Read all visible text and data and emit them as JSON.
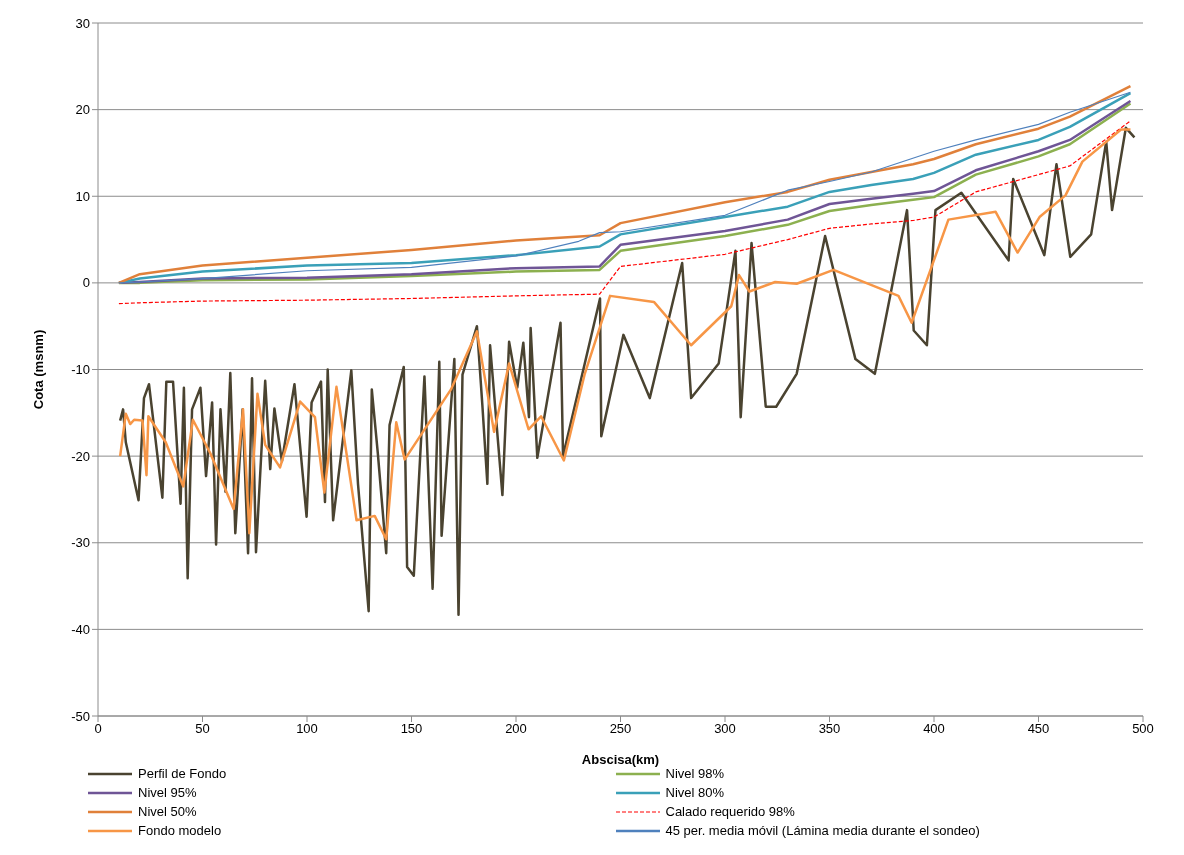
{
  "chart_data": {
    "type": "line",
    "xlabel": "Abscisa(km)",
    "ylabel": "Cota (msnm)",
    "xlim": [
      0,
      500
    ],
    "xticks": [
      0,
      50,
      100,
      150,
      200,
      250,
      300,
      350,
      400,
      450,
      500
    ],
    "ylim": [
      -50,
      30
    ],
    "yticks": [
      -50,
      -40,
      -30,
      -20,
      -10,
      0,
      10,
      20,
      30
    ],
    "grid": "y",
    "legend": "bottom",
    "marker": "none",
    "line_style": "solid",
    "series": [
      {
        "name": "Perfil de Fondo",
        "color": "#4a4330",
        "x": [
          10.6,
          12,
          13.3,
          19.4,
          22,
          24.4,
          30.8,
          32.7,
          35.9,
          39.5,
          41.1,
          42.9,
          45,
          49,
          51.7,
          54.6,
          56.5,
          58.6,
          61,
          63.3,
          65.7,
          69.2,
          71.8,
          73.7,
          75.6,
          80,
          82.4,
          84.4,
          88,
          94,
          99.8,
          102.2,
          106.7,
          108.6,
          109.9,
          112.5,
          121.2,
          124.4,
          129.5,
          131,
          133.9,
          137.9,
          139.5,
          146.3,
          147.9,
          151.1,
          156.2,
          160.1,
          163.3,
          164.4,
          170.5,
          172.5,
          174.4,
          181.3,
          183.9,
          186.3,
          187.6,
          193.5,
          196.7,
          200.6,
          203.5,
          206.2,
          207,
          210.2,
          221.3,
          222.5,
          240.2,
          240.8,
          251.4,
          264,
          279.5,
          283.8,
          297,
          305,
          307.5,
          312.7,
          319.5,
          324.5,
          334.3,
          347.9,
          362.4,
          371.7,
          387.1,
          390.3,
          396.6,
          400.7,
          413.1,
          435.7,
          437.9,
          452.8,
          458.6,
          465.2,
          475.2,
          482.4,
          485.2,
          491.8,
          495.9
        ],
        "values": [
          -15.9,
          -14.6,
          -18.4,
          -25.1,
          -13.3,
          -11.7,
          -24.8,
          -11.4,
          -11.4,
          -25.5,
          -12.1,
          -34.1,
          -14.6,
          -12.1,
          -22.3,
          -13.8,
          -30.2,
          -14.6,
          -24.1,
          -10.4,
          -28.9,
          -14.6,
          -31.2,
          -11,
          -31.1,
          -11.3,
          -21.5,
          -14.5,
          -20.6,
          -11.7,
          -27,
          -13.8,
          -11.4,
          -25.3,
          -10,
          -27.4,
          -10.1,
          -23.2,
          -37.9,
          -12.3,
          -19.7,
          -31.2,
          -16.4,
          -9.7,
          -32.8,
          -33.8,
          -10.8,
          -35.3,
          -9.1,
          -29.2,
          -8.8,
          -38.3,
          -10.6,
          -5,
          -14.1,
          -23.2,
          -7.2,
          -24.5,
          -6.8,
          -12.1,
          -6.9,
          -15.5,
          -5.2,
          -20.2,
          -4.6,
          -20,
          -1.8,
          -17.7,
          -6,
          -13.3,
          2.3,
          -13.3,
          -9.3,
          3.7,
          -15.5,
          4.6,
          -14.3,
          -14.3,
          -10.5,
          5.4,
          -8.8,
          -10.5,
          8.4,
          -5.5,
          -7.2,
          8.4,
          10.4,
          2.6,
          12,
          3.2,
          13.7,
          3,
          5.6,
          16.3,
          8.4,
          17.9,
          16.8
        ]
      },
      {
        "name": "Nivel 98%",
        "color": "#8cb04f",
        "x": [
          10,
          20,
          50,
          100,
          150,
          200,
          240,
          250,
          300,
          330,
          350,
          370,
          390,
          400,
          420,
          450,
          465,
          494
        ],
        "values": [
          0,
          0,
          0.3,
          0.4,
          0.8,
          1.3,
          1.5,
          3.7,
          5.4,
          6.7,
          8.3,
          9,
          9.6,
          9.9,
          12.5,
          14.6,
          16,
          20.7
        ]
      },
      {
        "name": "Nivel 95%",
        "color": "#6f5596",
        "x": [
          10,
          20,
          50,
          100,
          150,
          200,
          240,
          250,
          300,
          330,
          350,
          370,
          390,
          400,
          420,
          450,
          465,
          494
        ],
        "values": [
          0,
          0.1,
          0.5,
          0.6,
          1,
          1.7,
          1.9,
          4.4,
          6,
          7.3,
          9.1,
          9.7,
          10.3,
          10.6,
          13,
          15.2,
          16.5,
          21
        ]
      },
      {
        "name": "Nivel 80%",
        "color": "#3aa0b8",
        "x": [
          10,
          20,
          50,
          100,
          150,
          200,
          240,
          250,
          300,
          330,
          350,
          370,
          390,
          400,
          420,
          450,
          465,
          494
        ],
        "values": [
          0,
          0.5,
          1.3,
          2,
          2.3,
          3.2,
          4.2,
          5.6,
          7.6,
          8.8,
          10.5,
          11.3,
          12,
          12.7,
          14.8,
          16.5,
          18,
          21.9
        ]
      },
      {
        "name": "Nivel 50%",
        "color": "#e0803a",
        "x": [
          10,
          20,
          50,
          100,
          150,
          200,
          240,
          250,
          300,
          330,
          350,
          370,
          390,
          400,
          420,
          450,
          465,
          494
        ],
        "values": [
          0,
          1,
          2,
          2.9,
          3.8,
          4.9,
          5.5,
          6.9,
          9.3,
          10.5,
          11.9,
          12.8,
          13.7,
          14.3,
          16,
          17.8,
          19.2,
          22.7
        ]
      },
      {
        "name": "Calado requerido 98%",
        "color": "#ff0000",
        "line_style": "dashed",
        "x": [
          10,
          20,
          50,
          100,
          150,
          200,
          240,
          250,
          300,
          330,
          350,
          370,
          390,
          400,
          420,
          450,
          465,
          494
        ],
        "values": [
          -2.4,
          -2.3,
          -2.1,
          -2,
          -1.8,
          -1.5,
          -1.3,
          1.9,
          3.3,
          5,
          6.3,
          6.8,
          7.2,
          7.6,
          10.5,
          12.5,
          13.5,
          18.7
        ]
      },
      {
        "name": "Fondo modelo",
        "color": "#f79646",
        "x": [
          10.6,
          13.3,
          15.4,
          17.3,
          21.3,
          23.2,
          24.1,
          32.4,
          40.8,
          45.4,
          53.8,
          64.9,
          69.4,
          72.4,
          76.3,
          80,
          87.1,
          96.7,
          103.8,
          108.3,
          114.1,
          123.7,
          132.4,
          137.9,
          142.7,
          146.7,
          168.9,
          181.3,
          189.5,
          196.7,
          206,
          212,
          222.9,
          232.9,
          245,
          266,
          283.8,
          303,
          306.7,
          311.7,
          324,
          334.3,
          351.9,
          383,
          389.3,
          406.9,
          429.5,
          440,
          450.5,
          462.9,
          471,
          489.5,
          494
        ],
        "values": [
          -20,
          -15.1,
          -16.3,
          -15.8,
          -15.9,
          -22.2,
          -15.4,
          -18.4,
          -23.5,
          -15.8,
          -19.7,
          -26.1,
          -14.6,
          -28.9,
          -12.8,
          -18.7,
          -21.3,
          -13.7,
          -15.5,
          -24.2,
          -12,
          -27.4,
          -26.9,
          -29.6,
          -16.1,
          -20.4,
          -12.3,
          -5.6,
          -17.2,
          -9.3,
          -16.9,
          -15.4,
          -20.5,
          -10.5,
          -1.5,
          -2.2,
          -7.2,
          -2.7,
          0.9,
          -1,
          0.1,
          -0.1,
          1.5,
          -1.5,
          -4.6,
          7.3,
          8.2,
          3.5,
          7.6,
          10.1,
          14,
          17.7,
          17.7
        ]
      },
      {
        "name": "45 per. media móvil (Lámina media durante el sondeo)",
        "color": "#4f81bd",
        "x": [
          10,
          20,
          50,
          100,
          150,
          200,
          230,
          240,
          250,
          300,
          330,
          350,
          370,
          400,
          420,
          450,
          465,
          494
        ],
        "values": [
          0,
          0.1,
          0.5,
          1.4,
          1.8,
          3.1,
          4.8,
          5.8,
          5.9,
          7.8,
          10.7,
          11.7,
          12.8,
          15.2,
          16.5,
          18.3,
          19.7,
          22
        ]
      }
    ]
  }
}
